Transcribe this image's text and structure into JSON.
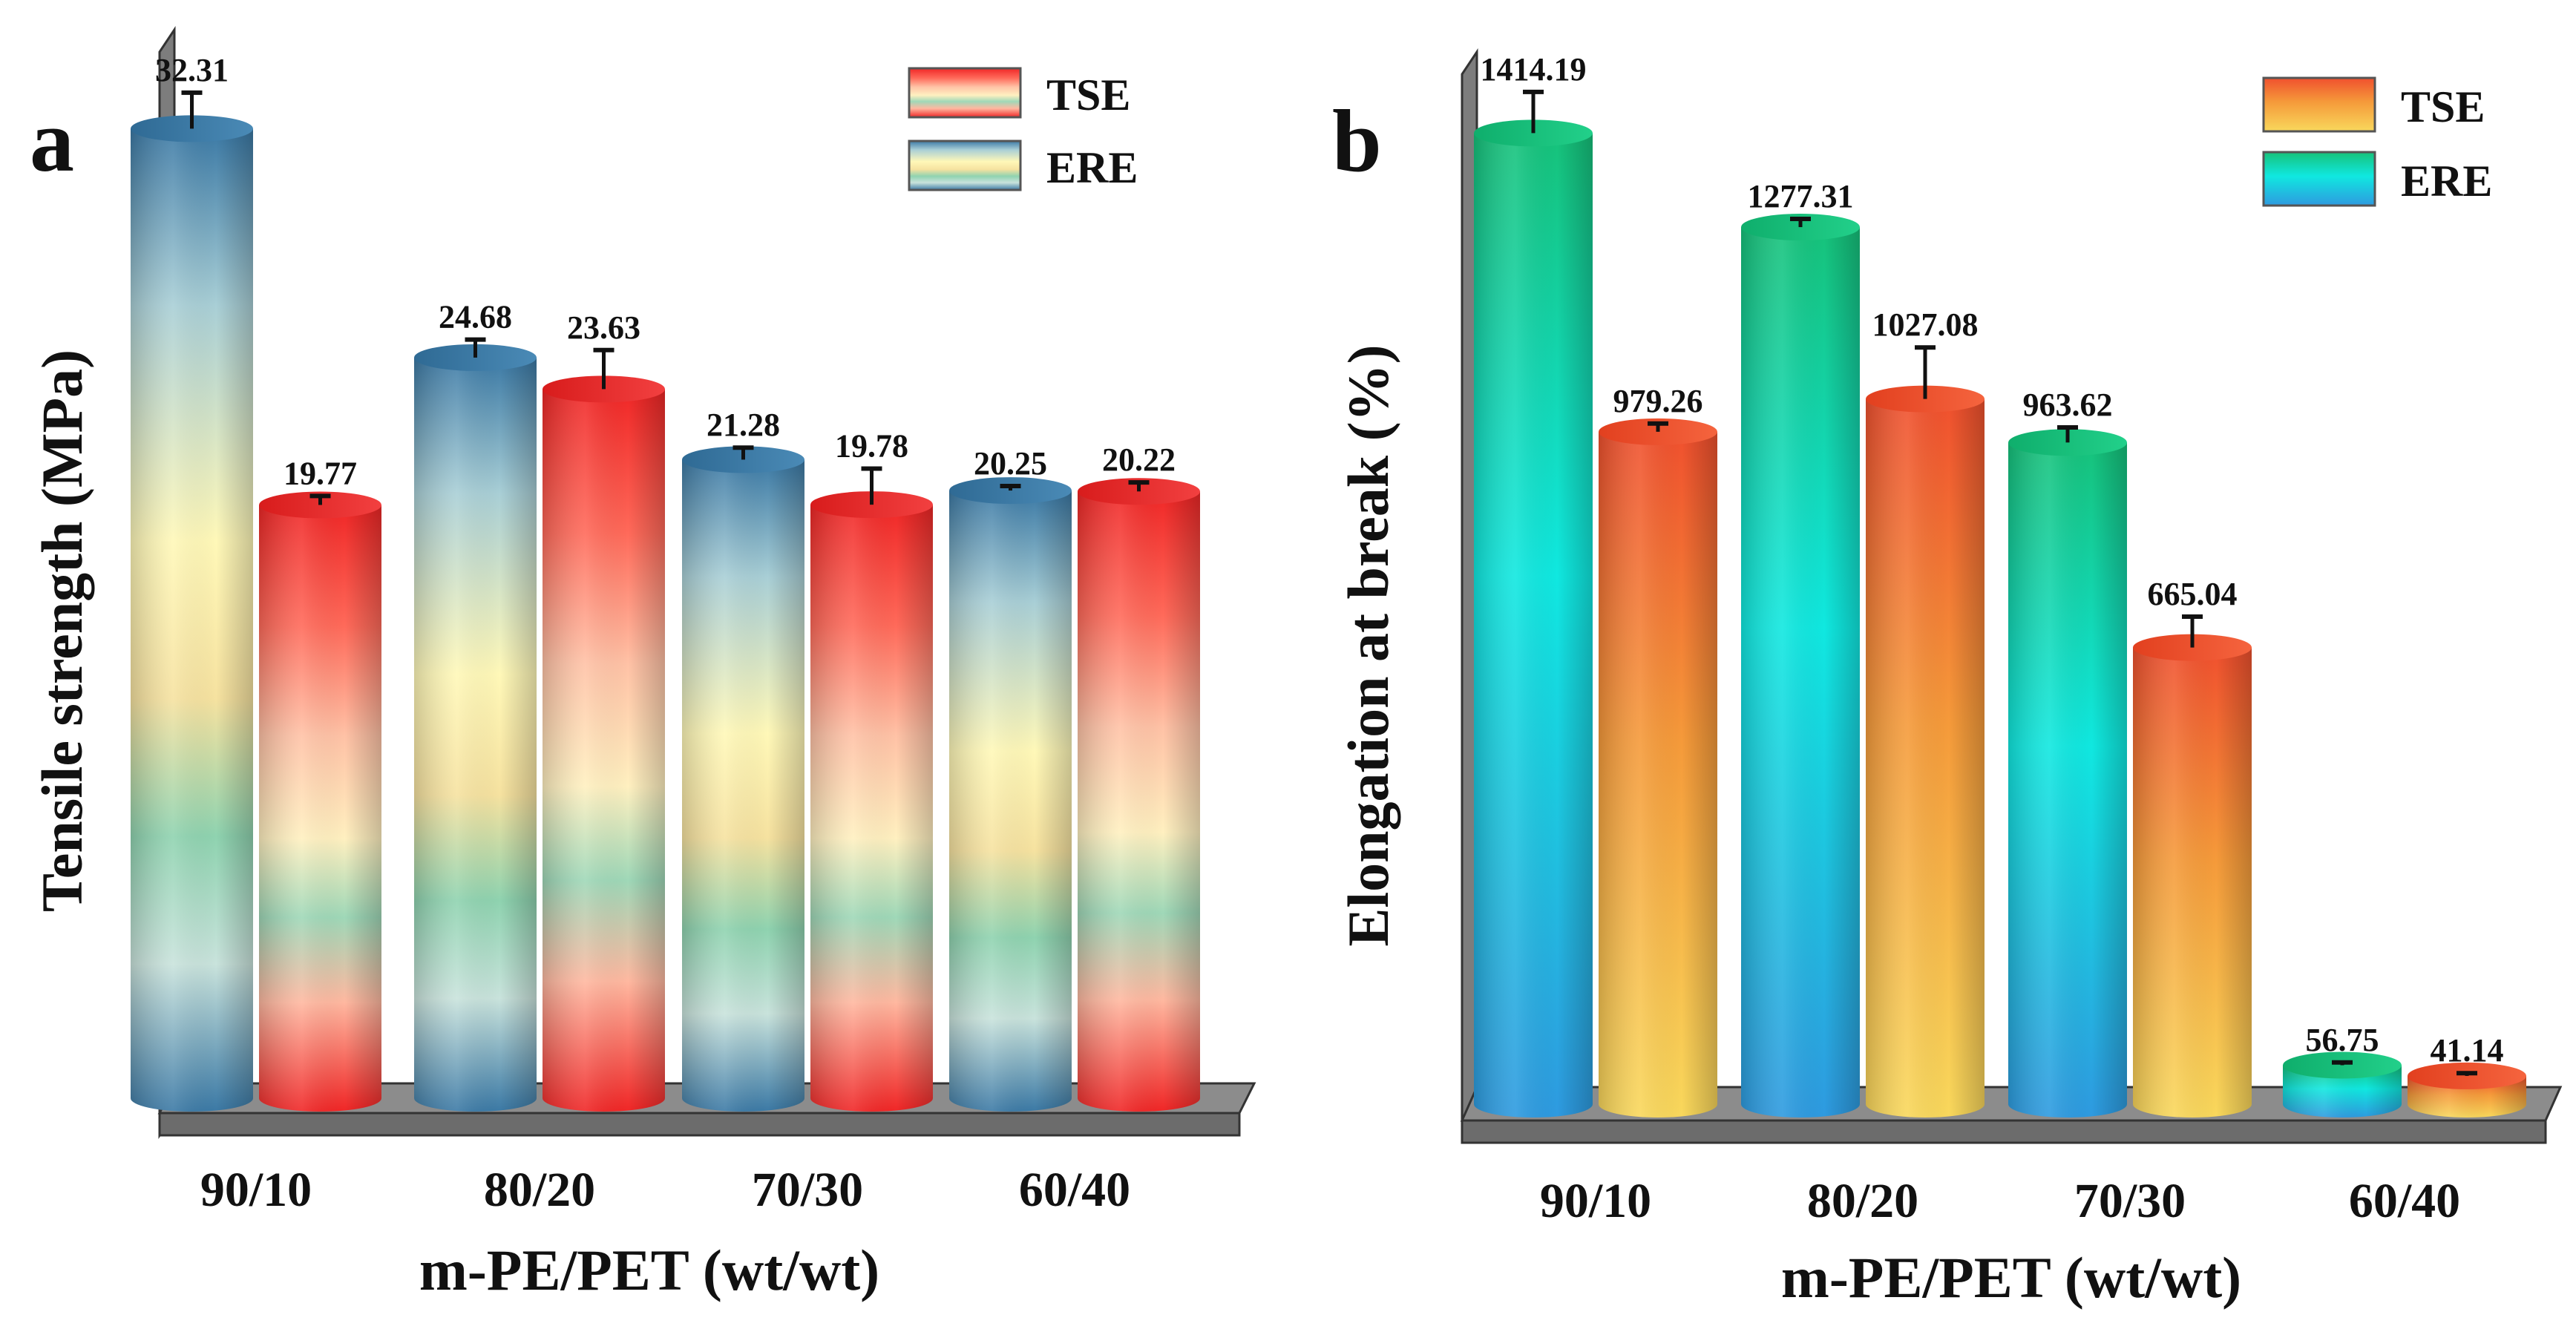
{
  "colors": {
    "blue_edge": "#3a7aa6",
    "cream": "#fff3b0",
    "teal_band": "#8fd3b0",
    "red": "#f02a2a",
    "pink": "#ffb3a1",
    "orange_red": "#f04e2e",
    "orange": "#f5a63c",
    "yellow": "#f8d55a",
    "green": "#15c77e",
    "cyan": "#12e6e0",
    "sky": "#2f9ee0",
    "platform_top": "#8a8a8a",
    "platform_face": "#6e6e6e"
  },
  "chart_data": [
    {
      "type": "bar",
      "panel": "a",
      "title": "",
      "xlabel": "m-PE/PET (wt/wt)",
      "ylabel": "Tensile strength (MPa)",
      "categories": [
        "90/10",
        "80/20",
        "70/30",
        "60/40"
      ],
      "ylim": [
        0,
        34
      ],
      "series": [
        {
          "name": "ERE",
          "style": "ere_a",
          "values": [
            32.31,
            24.68,
            21.28,
            20.25
          ],
          "errors": [
            1.2,
            0.6,
            0.4,
            0.15
          ],
          "labels": [
            "32.31",
            "24.68",
            "21.28",
            "20.25"
          ]
        },
        {
          "name": "TSE",
          "style": "tse_a",
          "values": [
            19.77,
            23.63,
            19.78,
            20.22
          ],
          "errors": [
            0.3,
            1.3,
            1.2,
            0.3
          ],
          "labels": [
            "19.77",
            "23.63",
            "19.78",
            "20.22"
          ]
        }
      ],
      "legend": [
        {
          "label": "TSE",
          "style": "tse_a"
        },
        {
          "label": "ERE",
          "style": "ere_a"
        }
      ],
      "legend_position": "top-right"
    },
    {
      "type": "bar",
      "panel": "b",
      "title": "",
      "xlabel": "m-PE/PET (wt/wt)",
      "ylabel": "Elongation at break (%)",
      "categories": [
        "90/10",
        "80/20",
        "70/30",
        "60/40"
      ],
      "ylim": [
        0,
        1500
      ],
      "series": [
        {
          "name": "ERE",
          "style": "ere_b",
          "values": [
            1414.19,
            1277.31,
            963.62,
            56.75
          ],
          "errors": [
            60,
            12,
            22,
            4
          ],
          "labels": [
            "1414.19",
            "1277.31",
            "963.62",
            "56.75"
          ]
        },
        {
          "name": "TSE",
          "style": "tse_b",
          "values": [
            979.26,
            1027.08,
            665.04,
            41.14
          ],
          "errors": [
            12,
            75,
            45,
            4
          ],
          "labels": [
            "979.26",
            "1027.08",
            "665.04",
            "41.14"
          ]
        }
      ],
      "legend": [
        {
          "label": "TSE",
          "style": "tse_b"
        },
        {
          "label": "ERE",
          "style": "ere_b"
        }
      ],
      "legend_position": "top-right"
    }
  ]
}
